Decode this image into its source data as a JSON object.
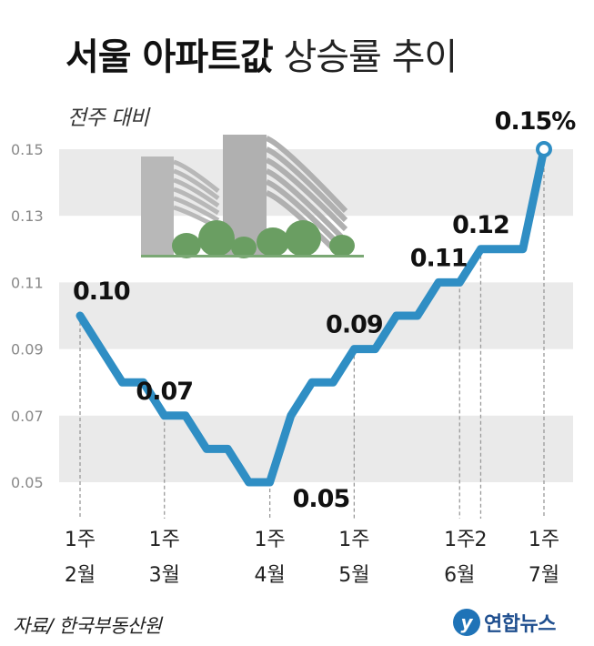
{
  "title": {
    "bold": "서울 아파트값",
    "light": "상승률 추이"
  },
  "subtitle": "전주 대비",
  "source": "자료/ 한국부동산원",
  "logo": {
    "mark": "y",
    "text": "연합뉴스"
  },
  "colors": {
    "line": "#2f8ec4",
    "band": "#eaeaea",
    "grid_text": "#888888",
    "building": "#a9a9a9",
    "trees": "#6a9e62"
  },
  "chart_data": {
    "type": "line",
    "title": "서울 아파트값 상승률 추이",
    "ylabel": "전주 대비",
    "ylim": [
      0.04,
      0.16
    ],
    "yticks": [
      "0.15",
      "0.13",
      "0.11",
      "0.09",
      "0.07",
      "0.05"
    ],
    "x": [
      0,
      1,
      2,
      3,
      4,
      5,
      6,
      7,
      8,
      9,
      10,
      11,
      12,
      13,
      14,
      15,
      16,
      17,
      18,
      19,
      20,
      21,
      22
    ],
    "values": [
      0.1,
      0.09,
      0.08,
      0.08,
      0.07,
      0.07,
      0.06,
      0.06,
      0.05,
      0.05,
      0.07,
      0.08,
      0.08,
      0.09,
      0.09,
      0.1,
      0.1,
      0.11,
      0.11,
      0.12,
      0.12,
      0.12,
      0.15
    ],
    "x_ticks": [
      {
        "x": 0,
        "line1": "1주",
        "line2": "2월"
      },
      {
        "x": 4,
        "line1": "1주",
        "line2": "3월"
      },
      {
        "x": 9,
        "line1": "1주",
        "line2": "4월"
      },
      {
        "x": 13,
        "line1": "1주",
        "line2": "5월"
      },
      {
        "x": 18,
        "line1": "1주",
        "line2": "6월"
      },
      {
        "x": 19,
        "line1": "2",
        "line2": ""
      },
      {
        "x": 22,
        "line1": "1주",
        "line2": "7월"
      }
    ],
    "data_labels": [
      {
        "x": 0,
        "text": "0.10",
        "pos": "above"
      },
      {
        "x": 4,
        "text": "0.07",
        "pos": "above"
      },
      {
        "x": 9,
        "text": "0.05",
        "pos": "below-right"
      },
      {
        "x": 13,
        "text": "0.09",
        "pos": "above"
      },
      {
        "x": 17,
        "text": "0.11",
        "pos": "above"
      },
      {
        "x": 19,
        "text": "0.12",
        "pos": "above"
      },
      {
        "x": 22,
        "text": "0.15%",
        "pos": "above"
      }
    ]
  }
}
